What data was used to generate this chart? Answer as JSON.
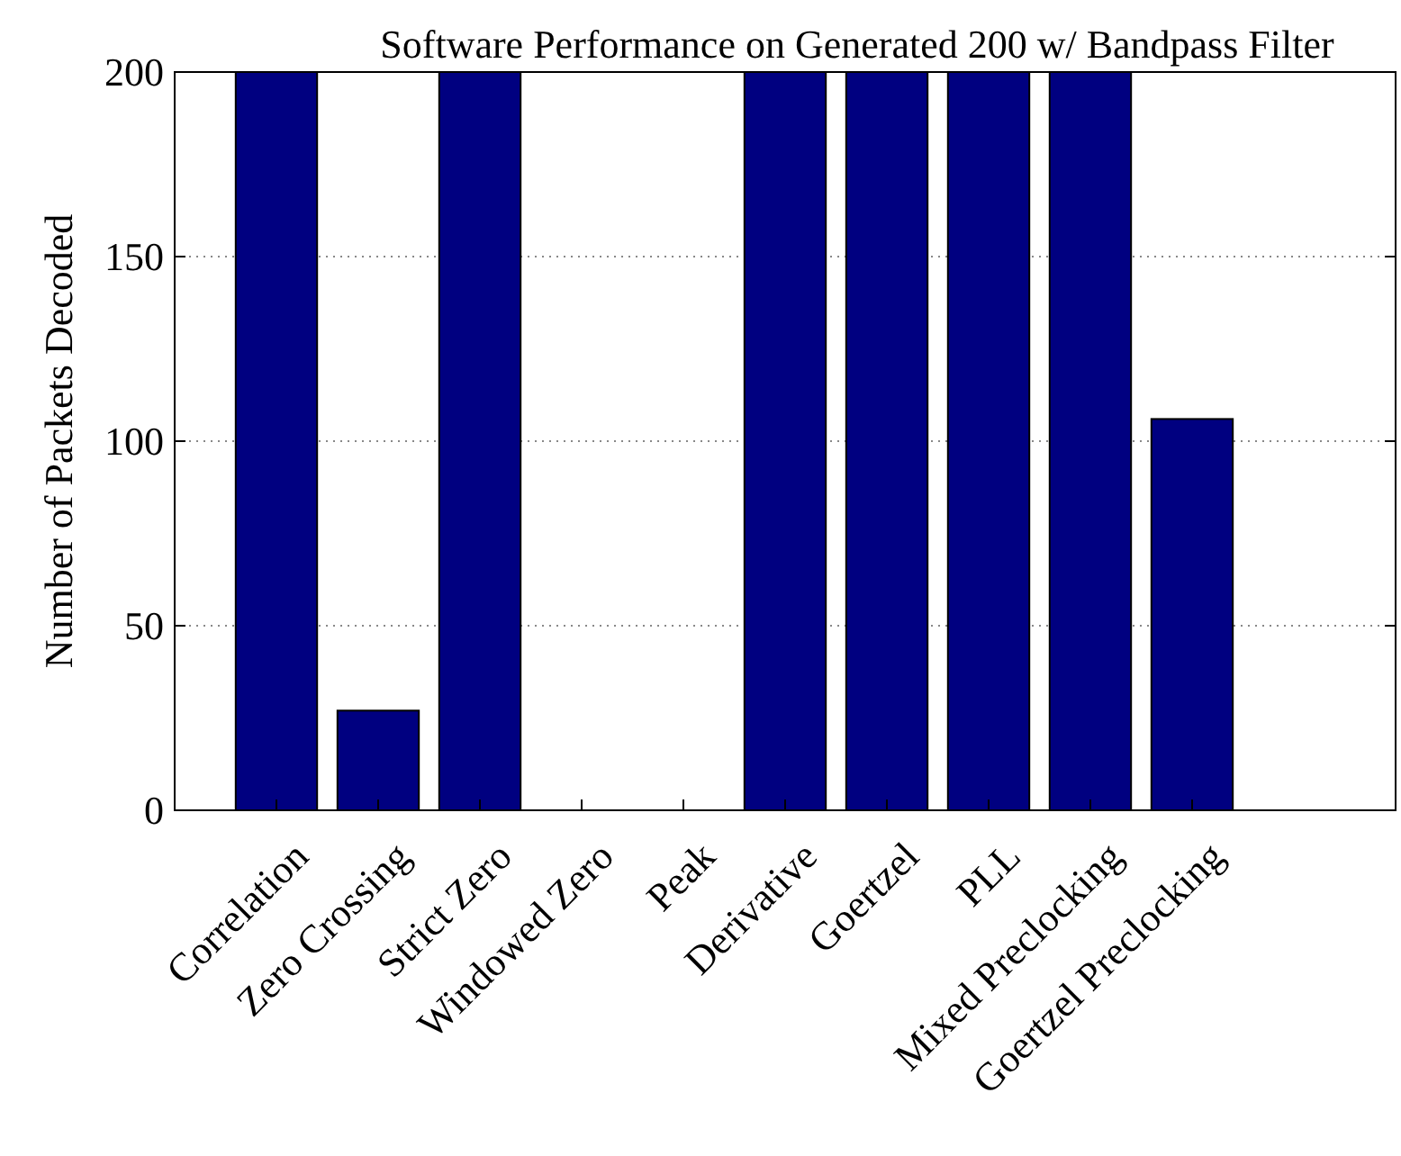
{
  "chart_data": {
    "type": "bar",
    "title": "Software Performance on Generated 200 w/ Bandpass Filter",
    "ylabel": "Number of Packets Decoded",
    "categories": [
      "Correlation",
      "Zero Crossing",
      "Strict Zero",
      "Windowed Zero",
      "Peak",
      "Derivative",
      "Goertzel",
      "PLL",
      "Mixed Preclocking",
      "Goertzel Preclocking"
    ],
    "values": [
      200,
      27,
      200,
      0,
      0,
      200,
      200,
      200,
      200,
      106
    ],
    "color": "#000080",
    "ylim": [
      0,
      200
    ],
    "yticks": [
      0,
      50,
      100,
      150,
      200
    ],
    "grid": "y"
  }
}
